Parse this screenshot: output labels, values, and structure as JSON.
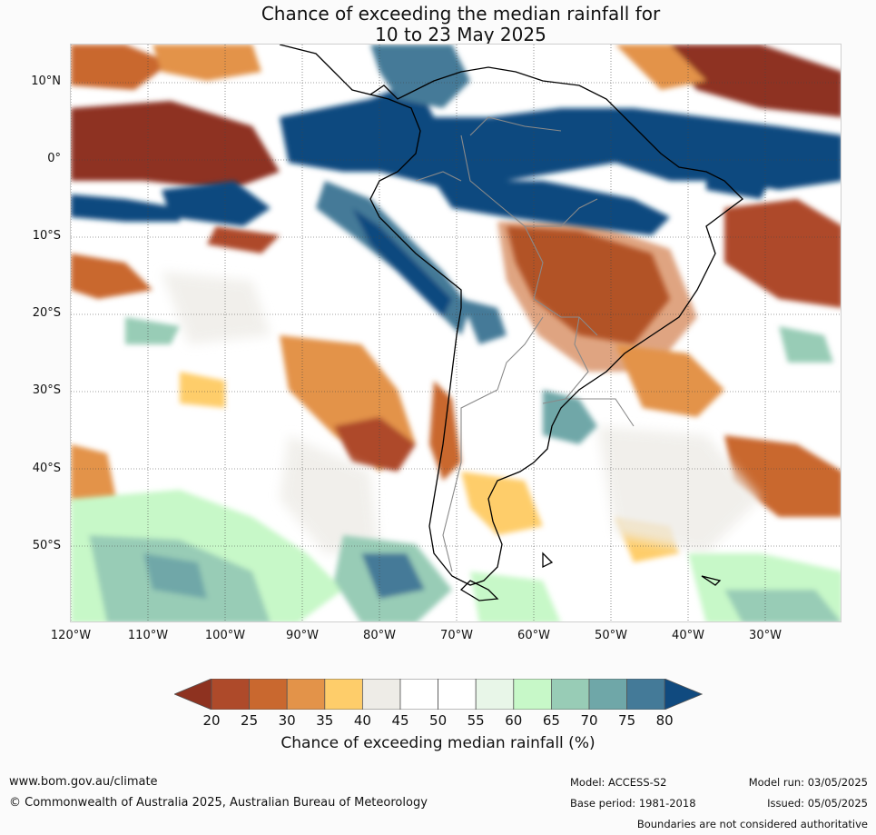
{
  "title": {
    "line1": "Chance of exceeding the median rainfall for",
    "line2": "10 to 23 May 2025"
  },
  "map": {
    "lat_labels": [
      "10°N",
      "0°",
      "10°S",
      "20°S",
      "30°S",
      "40°S",
      "50°S"
    ],
    "lon_labels": [
      "120°W",
      "110°W",
      "100°W",
      "90°W",
      "80°W",
      "70°W",
      "60°W",
      "50°W",
      "40°W",
      "30°W"
    ],
    "lat_range": [
      -60,
      15
    ],
    "lon_range": [
      -120,
      -20
    ],
    "continent_outline_color": "#000000",
    "border_color": "#888888",
    "gridlines": "dotted"
  },
  "colorbar": {
    "ticks": [
      "20",
      "25",
      "30",
      "35",
      "40",
      "45",
      "50",
      "55",
      "60",
      "65",
      "70",
      "75",
      "80"
    ],
    "colors": [
      "#8e3220",
      "#ae4a2a",
      "#c9682f",
      "#e39349",
      "#fecd6a",
      "#eeece7",
      "#ffffff",
      "#ffffff",
      "#e8f6e8",
      "#c7f8c8",
      "#98ccb6",
      "#6fa7a8",
      "#447a98",
      "#104a7f"
    ],
    "label": "Chance of exceeding median rainfall (%)"
  },
  "footer": {
    "website": "www.bom.gov.au/climate",
    "copyright": "© Commonwealth of Australia 2025, Australian Bureau of Meteorology",
    "model": "Model: ACCESS-S2",
    "base_period": "Base period: 1981-2018",
    "model_run": "Model run: 03/05/2025",
    "issued": "Issued: 05/05/2025",
    "disclaimer": "Boundaries are not considered authoritative"
  }
}
